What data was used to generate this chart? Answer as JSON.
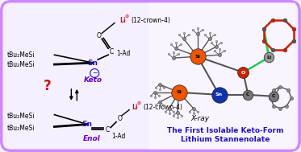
{
  "bg_color": "#f5f0ff",
  "border_color": "#cc88ff",
  "border_width": 2.5,
  "figsize": [
    3.73,
    1.89
  ],
  "dpi": 100,
  "right_panel": {
    "title_line1": "The First Isolable Keto-Form",
    "title_line2": "Lithium Stannenolate",
    "title_color": "#2211bb",
    "xray_label": "X-ray",
    "xray_color": "#000000"
  }
}
